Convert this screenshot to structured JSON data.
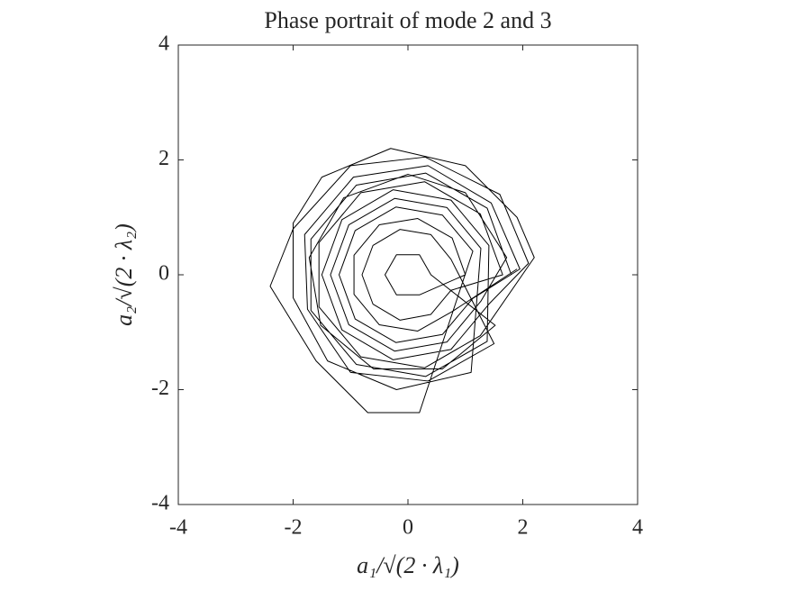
{
  "chart_data": {
    "type": "line",
    "title": "Phase portrait of mode 2 and 3",
    "x_label": "a₁/√(2 · λ₁)",
    "y_label": "a₂/√(2 · λ₂)",
    "xlim": [
      -4,
      4
    ],
    "ylim": [
      -4,
      4
    ],
    "xticks": [
      -4,
      -2,
      0,
      2,
      4
    ],
    "yticks": [
      -4,
      -2,
      0,
      2,
      4
    ],
    "color": "#000000",
    "x": [
      1.8,
      1.38,
      0.31,
      -0.9,
      -1.69,
      -1.69,
      -0.9,
      0.31,
      1.38,
      1.41,
      0.75,
      -0.26,
      -1.15,
      -1.5,
      -1.15,
      -0.26,
      0.75,
      1.41,
      2.1,
      1.6,
      0.3,
      -1.0,
      -2.0,
      -2.4,
      -1.6,
      -0.7,
      0.2,
      1.13,
      0.6,
      -0.21,
      -0.92,
      -1.2,
      -0.92,
      -0.21,
      0.6,
      1.13,
      1.95,
      1.45,
      0.35,
      -0.95,
      -1.8,
      -1.75,
      -1.0,
      0.35,
      1.5,
      0.75,
      0.4,
      -0.14,
      -0.61,
      -0.8,
      -0.61,
      -0.14,
      0.4,
      0.75,
      1.65,
      1.26,
      0.29,
      -0.82,
      -1.55,
      -1.55,
      -0.82,
      0.29,
      1.26,
      2.2,
      1.9,
      1.0,
      -0.3,
      -1.5,
      -2.0,
      -2.0,
      -1.4,
      -0.2,
      1.1,
      1.27,
      0.68,
      -0.23,
      -1.03,
      -1.35,
      -1.03,
      -0.23,
      0.68,
      1.27,
      1.72,
      1.0,
      0.0,
      -1.12,
      -1.72,
      -1.52,
      -0.6,
      0.6,
      1.52,
      0.4,
      0.2,
      -0.2,
      -0.4,
      -0.2,
      0.2,
      1.0,
      0.77,
      0.17,
      -0.5,
      -0.94,
      -0.94,
      -0.5,
      0.17,
      0.77,
      1.9
    ],
    "values": [
      0,
      1.16,
      1.77,
      1.56,
      0.62,
      -0.62,
      -1.56,
      -1.77,
      -1.16,
      0.51,
      1.3,
      1.48,
      0.96,
      0,
      -0.96,
      -1.48,
      -1.3,
      -0.51,
      0.2,
      1.4,
      2.05,
      1.9,
      0.8,
      -0.2,
      -1.5,
      -2.4,
      -2.4,
      0.41,
      1.04,
      1.18,
      0.77,
      0,
      -0.77,
      -1.18,
      -1.04,
      -0.41,
      0.1,
      1.25,
      1.9,
      1.7,
      0.7,
      -0.6,
      -1.7,
      -1.85,
      -1.2,
      0.27,
      0.7,
      0.79,
      0.51,
      0,
      -0.51,
      -0.79,
      -0.69,
      -0.27,
      0,
      1.06,
      1.62,
      1.43,
      0.56,
      -0.56,
      -1.43,
      -1.62,
      -1.06,
      0.3,
      1.0,
      1.9,
      2.2,
      1.7,
      0.9,
      -0.4,
      -1.5,
      -2.0,
      -1.7,
      0.46,
      1.17,
      1.33,
      0.87,
      0,
      -0.87,
      -1.33,
      -1.17,
      -0.46,
      0.3,
      1.43,
      1.75,
      1.34,
      0.3,
      -0.88,
      -1.64,
      -1.64,
      -0.88,
      0,
      0.35,
      0.35,
      0,
      -0.35,
      -0.35,
      0,
      0.64,
      0.98,
      0.87,
      0.34,
      -0.34,
      -0.87,
      -0.98,
      -0.64,
      0.1
    ]
  }
}
